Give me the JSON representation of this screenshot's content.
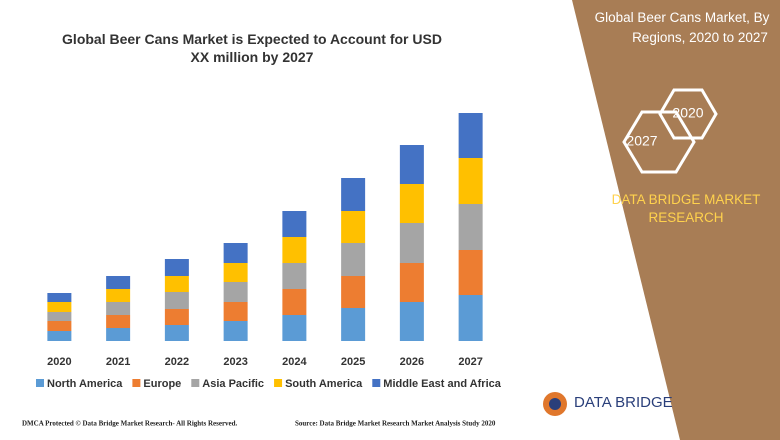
{
  "chart_data": {
    "type": "bar",
    "stacked": true,
    "title": "Global Beer Cans Market is Expected to Account for USD XX million by 2027",
    "categories": [
      "2020",
      "2021",
      "2022",
      "2023",
      "2024",
      "2025",
      "2026",
      "2027"
    ],
    "series": [
      {
        "name": "North America",
        "color": "#5b9bd5",
        "values": [
          10,
          13,
          16,
          20,
          26,
          33,
          39,
          46
        ]
      },
      {
        "name": "Europe",
        "color": "#ed7d31",
        "values": [
          10,
          13,
          16,
          19,
          26,
          32,
          39,
          45
        ]
      },
      {
        "name": "Asia Pacific",
        "color": "#a5a5a5",
        "values": [
          9,
          13,
          17,
          20,
          26,
          33,
          40,
          46
        ]
      },
      {
        "name": "South America",
        "color": "#ffc000",
        "values": [
          10,
          13,
          16,
          19,
          26,
          32,
          39,
          46
        ]
      },
      {
        "name": "Middle East and Africa",
        "color": "#4472c4",
        "values": [
          9,
          13,
          17,
          20,
          26,
          33,
          39,
          45
        ]
      }
    ]
  },
  "panel": {
    "heading": "Global Beer Cans Market, By Regions, 2020 to 2027",
    "hex_labels": [
      "2020",
      "2027"
    ],
    "brand": "DATA BRIDGE MARKET RESEARCH"
  },
  "footer": {
    "left": "DMCA Protected © Data Bridge Market Research- All Rights Reserved.",
    "source": "Source: Data Bridge Market Research Market Analysis Study 2020",
    "logo": "DATA BRIDGE"
  }
}
